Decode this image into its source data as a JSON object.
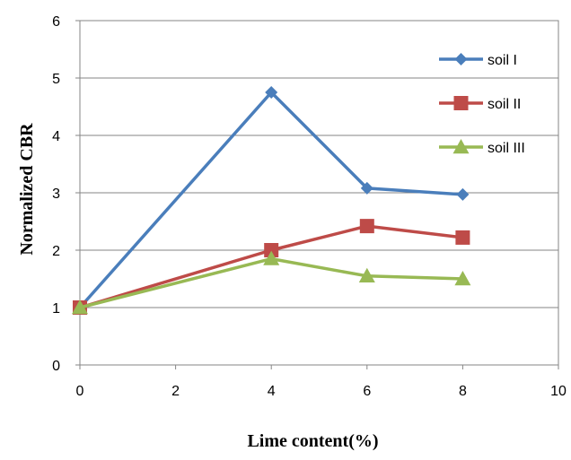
{
  "chart_data": {
    "type": "line",
    "title": "",
    "xlabel": "Lime content(%)",
    "ylabel": "Normalized CBR",
    "xlim": [
      0,
      10
    ],
    "ylim": [
      0,
      6
    ],
    "xticks": [
      "0",
      "2",
      "4",
      "6",
      "8",
      "10"
    ],
    "yticks": [
      "0",
      "1",
      "2",
      "3",
      "4",
      "5",
      "6"
    ],
    "grid": "horizontal",
    "legend_position": "top-right",
    "x": [
      0,
      4,
      6,
      8
    ],
    "series": [
      {
        "name": "soil I",
        "values": [
          1.0,
          4.75,
          3.08,
          2.97
        ],
        "color": "#4a7ebb",
        "marker": "diamond"
      },
      {
        "name": "soil II",
        "values": [
          1.0,
          2.0,
          2.42,
          2.22
        ],
        "color": "#be4b48",
        "marker": "square"
      },
      {
        "name": "soil III",
        "values": [
          1.0,
          1.85,
          1.55,
          1.5
        ],
        "color": "#98b954",
        "marker": "triangle"
      }
    ]
  }
}
